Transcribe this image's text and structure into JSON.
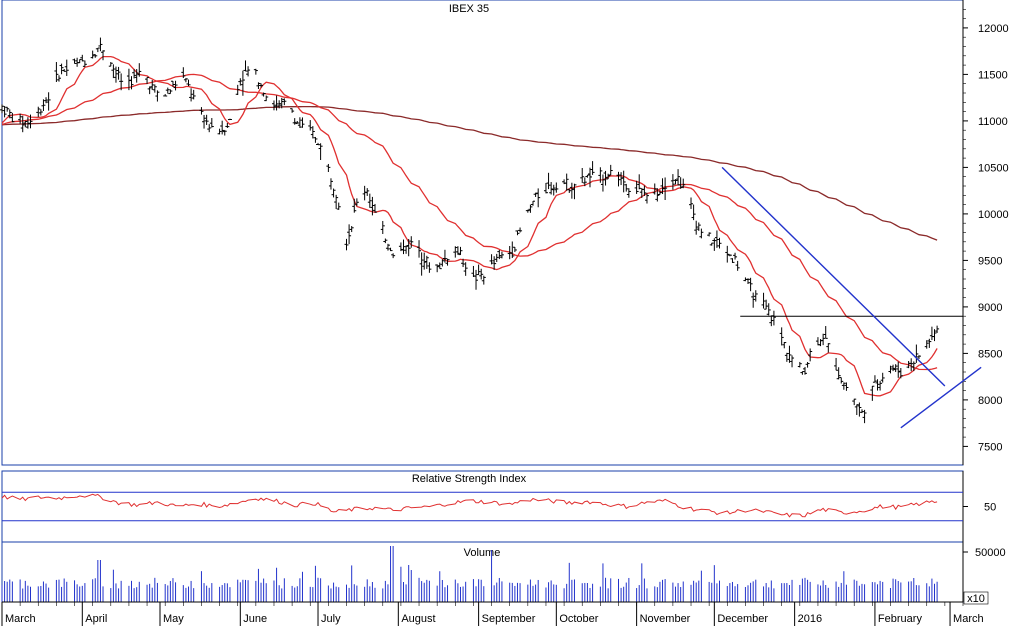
{
  "chart_data": [
    {
      "panel": "price",
      "type": "ohlc",
      "title": "IBEX 35",
      "ylim": [
        7300,
        12300
      ],
      "yticks": [
        7500,
        8000,
        8500,
        9000,
        9500,
        10000,
        10500,
        11000,
        11500,
        12000
      ],
      "ytick_labels": [
        "7500",
        "8000",
        "8500",
        "9000",
        "9500",
        "10000",
        "10500",
        "11000",
        "11500",
        "12000"
      ],
      "x_range_days": [
        0,
        371
      ],
      "price_keypoints": [
        [
          0,
          11150
        ],
        [
          10,
          11050
        ],
        [
          20,
          10980
        ],
        [
          30,
          11000
        ],
        [
          40,
          11150
        ],
        [
          50,
          11300
        ],
        [
          60,
          11550
        ],
        [
          70,
          11550
        ],
        [
          80,
          11620
        ],
        [
          90,
          11700
        ],
        [
          100,
          11800
        ],
        [
          110,
          11750
        ],
        [
          115,
          11550
        ],
        [
          125,
          11400
        ],
        [
          135,
          11450
        ],
        [
          145,
          11550
        ],
        [
          155,
          11350
        ],
        [
          165,
          11250
        ],
        [
          175,
          11350
        ],
        [
          185,
          11500
        ],
        [
          195,
          11300
        ],
        [
          205,
          11050
        ],
        [
          215,
          10950
        ],
        [
          225,
          10900
        ],
        [
          235,
          11000
        ],
        [
          245,
          11450
        ],
        [
          255,
          11550
        ],
        [
          265,
          11450
        ],
        [
          275,
          11200
        ],
        [
          285,
          11150
        ],
        [
          295,
          11200
        ],
        [
          305,
          10950
        ],
        [
          315,
          10900
        ],
        [
          325,
          10800
        ],
        [
          335,
          10500
        ],
        [
          345,
          10200
        ],
        [
          355,
          9700
        ],
        [
          365,
          10100
        ],
        [
          375,
          10300
        ],
        [
          385,
          9950
        ],
        [
          395,
          9750
        ],
        [
          405,
          9550
        ],
        [
          415,
          9650
        ],
        [
          425,
          9700
        ],
        [
          435,
          9500
        ],
        [
          445,
          9400
        ],
        [
          455,
          9500
        ],
        [
          465,
          9650
        ],
        [
          475,
          9500
        ],
        [
          485,
          9300
        ],
        [
          495,
          9350
        ],
        [
          505,
          9450
        ],
        [
          515,
          9550
        ],
        [
          525,
          9600
        ],
        [
          535,
          9850
        ],
        [
          545,
          10100
        ],
        [
          555,
          10250
        ],
        [
          565,
          10300
        ],
        [
          575,
          10350
        ],
        [
          585,
          10300
        ],
        [
          595,
          10350
        ],
        [
          605,
          10400
        ],
        [
          615,
          10400
        ],
        [
          625,
          10450
        ],
        [
          635,
          10400
        ],
        [
          645,
          10300
        ],
        [
          655,
          10250
        ],
        [
          665,
          10200
        ],
        [
          675,
          10250
        ],
        [
          685,
          10350
        ],
        [
          695,
          10400
        ],
        [
          705,
          10200
        ],
        [
          715,
          9900
        ],
        [
          725,
          9750
        ],
        [
          735,
          9700
        ],
        [
          745,
          9600
        ],
        [
          755,
          9500
        ],
        [
          765,
          9300
        ],
        [
          775,
          9100
        ],
        [
          785,
          9000
        ],
        [
          795,
          8850
        ],
        [
          805,
          8600
        ],
        [
          815,
          8400
        ],
        [
          825,
          8300
        ],
        [
          835,
          8600
        ],
        [
          845,
          8700
        ],
        [
          855,
          8450
        ],
        [
          865,
          8200
        ],
        [
          875,
          8050
        ],
        [
          885,
          7850
        ],
        [
          895,
          8100
        ],
        [
          905,
          8250
        ],
        [
          915,
          8350
        ],
        [
          925,
          8300
        ],
        [
          935,
          8400
        ],
        [
          945,
          8500
        ],
        [
          955,
          8650
        ],
        [
          965,
          8800
        ]
      ],
      "horizontal_line": 8900,
      "trend_lines": [
        {
          "from": [
            278,
            10500
          ],
          "to": [
            364,
            8150
          ]
        },
        {
          "from": [
            347,
            7700
          ],
          "to": [
            378,
            8350
          ]
        }
      ],
      "moving_averages": [
        "ma-short",
        "ma-medium",
        "ma-long"
      ]
    },
    {
      "panel": "rsi",
      "type": "line",
      "title": "Relative Strength Index",
      "ylim": [
        0,
        100
      ],
      "yticks": [
        50
      ],
      "ytick_labels": [
        "50"
      ],
      "levels": [
        70,
        30
      ],
      "values_keypoints": [
        [
          0,
          64
        ],
        [
          20,
          60
        ],
        [
          40,
          63
        ],
        [
          60,
          62
        ],
        [
          80,
          66
        ],
        [
          100,
          64
        ],
        [
          120,
          55
        ],
        [
          140,
          52
        ],
        [
          160,
          56
        ],
        [
          180,
          50
        ],
        [
          200,
          54
        ],
        [
          220,
          50
        ],
        [
          240,
          55
        ],
        [
          260,
          62
        ],
        [
          280,
          58
        ],
        [
          300,
          52
        ],
        [
          320,
          55
        ],
        [
          340,
          42
        ],
        [
          360,
          46
        ],
        [
          380,
          48
        ],
        [
          400,
          45
        ],
        [
          420,
          48
        ],
        [
          440,
          50
        ],
        [
          460,
          55
        ],
        [
          480,
          58
        ],
        [
          500,
          56
        ],
        [
          520,
          53
        ],
        [
          540,
          60
        ],
        [
          560,
          58
        ],
        [
          580,
          55
        ],
        [
          600,
          57
        ],
        [
          620,
          53
        ],
        [
          640,
          50
        ],
        [
          660,
          56
        ],
        [
          680,
          58
        ],
        [
          700,
          48
        ],
        [
          720,
          44
        ],
        [
          740,
          40
        ],
        [
          760,
          45
        ],
        [
          780,
          43
        ],
        [
          800,
          38
        ],
        [
          820,
          37
        ],
        [
          840,
          46
        ],
        [
          860,
          41
        ],
        [
          880,
          44
        ],
        [
          900,
          50
        ],
        [
          920,
          49
        ],
        [
          940,
          54
        ],
        [
          960,
          58
        ]
      ]
    },
    {
      "panel": "volume",
      "type": "bar",
      "title": "Volume",
      "yticks": [
        50000
      ],
      "ytick_labels": [
        "50000"
      ],
      "scale_label": "x10",
      "avg_value": 18000,
      "spikes_keypoints": [
        [
          100,
          42000
        ],
        [
          400,
          56000
        ],
        [
          500,
          52000
        ]
      ]
    },
    {
      "panel": "x-axis",
      "type": "axis",
      "months": [
        "March",
        "April",
        "May",
        "June",
        "July",
        "August",
        "September",
        "October",
        "November",
        "December",
        "2016",
        "February",
        "March"
      ],
      "month_starts": [
        0,
        31,
        61,
        92,
        122,
        153,
        184,
        214,
        245,
        275,
        306,
        337,
        366
      ]
    }
  ]
}
